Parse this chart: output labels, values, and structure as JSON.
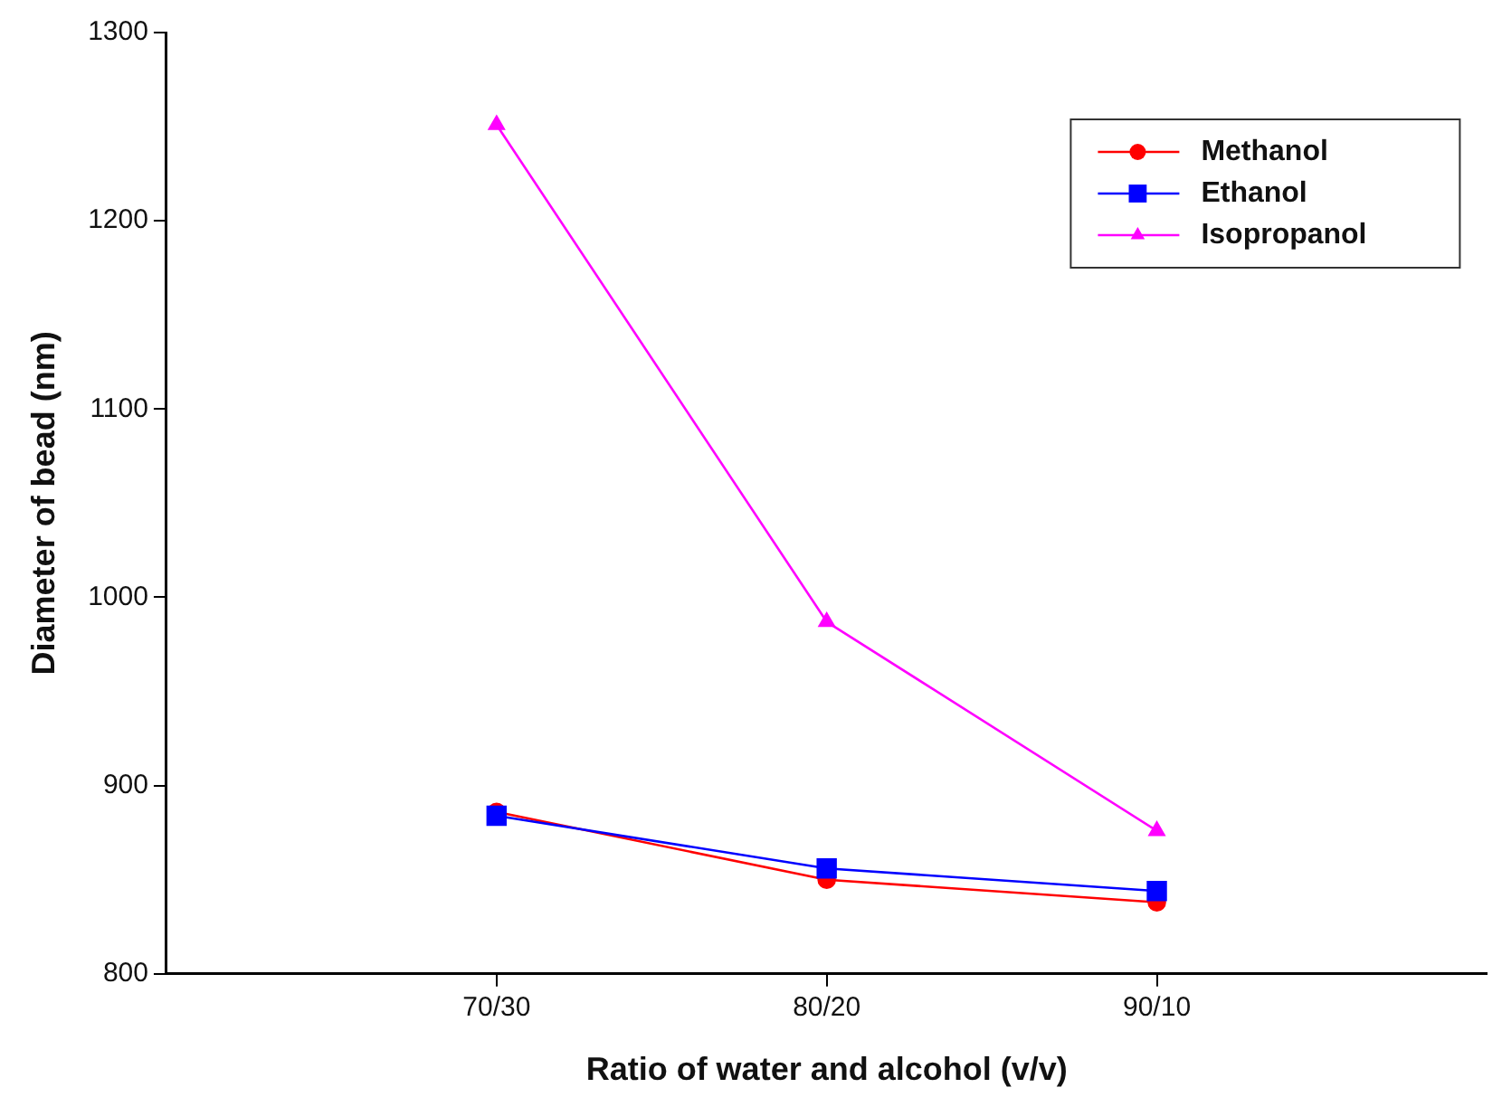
{
  "chart_data": {
    "type": "line",
    "xlabel": "Ratio of water and alcohol (v/v)",
    "ylabel": "Diameter of bead (nm)",
    "categories": [
      null,
      "70/30",
      "80/20",
      "90/10",
      null
    ],
    "series": [
      {
        "name": "Methanol",
        "color": "#ff0000",
        "marker": "circle",
        "values": [
          null,
          886,
          850,
          838,
          null
        ]
      },
      {
        "name": "Ethanol",
        "color": "#0000ff",
        "marker": "square",
        "values": [
          null,
          884,
          856,
          844,
          null
        ]
      },
      {
        "name": "Isopropanol",
        "color": "#ff00ff",
        "marker": "triangle",
        "values": [
          null,
          1251,
          987,
          876,
          null
        ]
      }
    ],
    "ylim": [
      800,
      1300
    ],
    "yticks": [
      800,
      900,
      1000,
      1100,
      1200,
      1300
    ],
    "grid": false,
    "legend": "top right",
    "line_style": "solid"
  }
}
